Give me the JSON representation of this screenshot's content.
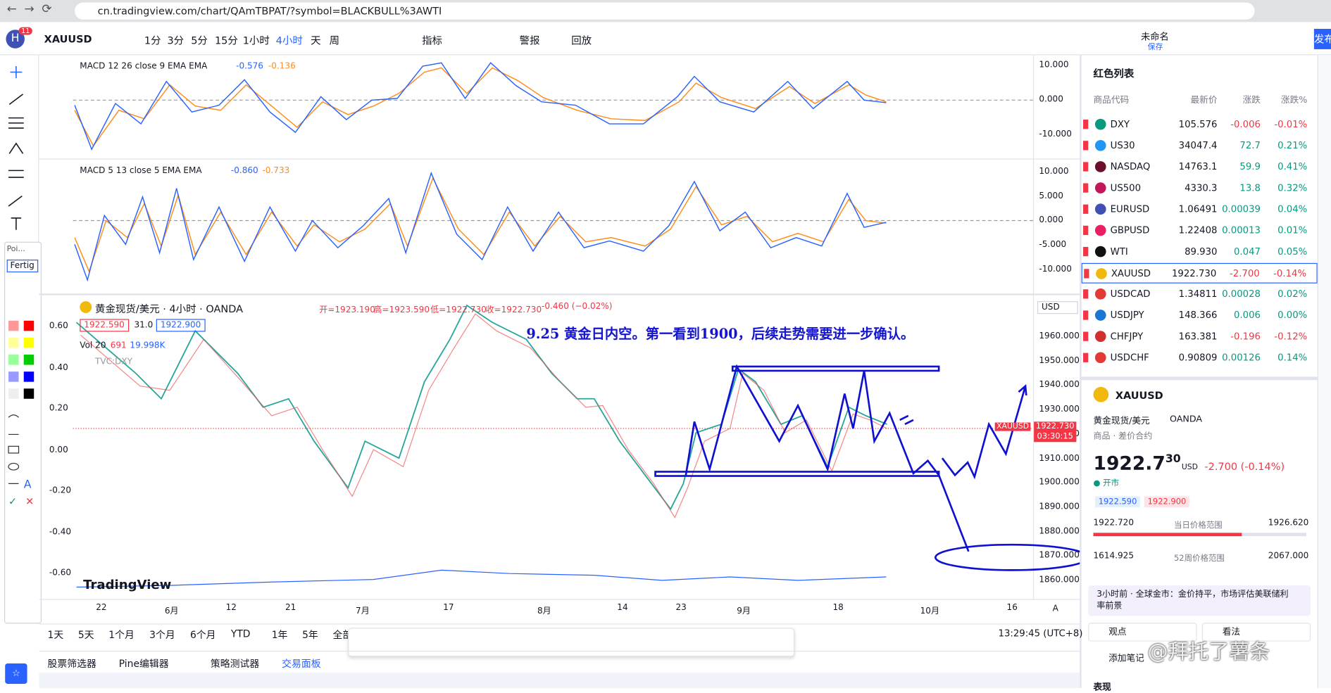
{
  "browser": {
    "url": "cn.tradingview.com/chart/QAmTBPAT/?symbol=BLACKBULL%3AWTI",
    "badge": "11"
  },
  "toolbar": {
    "symbol": "XAUUSD",
    "intervals": [
      "1分",
      "3分",
      "5分",
      "15分",
      "1小时",
      "4小时",
      "天",
      "周"
    ],
    "indicators": "指标",
    "alerts": "警报",
    "replay": "回放",
    "layout_name": "未命名",
    "save": "保存",
    "publish": "发布"
  },
  "tool_panel": {
    "title": "Poi...",
    "button": "Fertig"
  },
  "panes": [
    {
      "legend": "MACD 12 26 close 9 EMA EMA",
      "value_a": "-0.576",
      "value_b": "-0.136",
      "axis": [
        "10.000",
        "0.000",
        "-10.000"
      ]
    },
    {
      "legend": "MACD 5 13 close 5 EMA EMA",
      "value_a": "-0.860",
      "value_b": "-0.733",
      "axis": [
        "10.000",
        "5.000",
        "0.000",
        "-5.000",
        "-10.000"
      ]
    }
  ],
  "main": {
    "title": "黄金现货/美元 · 4小时 · OANDA",
    "open": "开=1923.190",
    "high": "高=1923.590",
    "low": "低=1922.730",
    "close": "收=1922.730",
    "change": "-0.460 (−0.02%)",
    "bid": "1922.590",
    "spread": "31.0",
    "ask": "1922.900",
    "volume_label": "Vol 20",
    "volume_a": "691",
    "volume_b": "19.998K",
    "overlay": "TVC:DXY",
    "currency": "USD",
    "annotation": "9.25 黄金日内空。第一看到1900，后续走势需要进一步确认。",
    "price_tag_symbol": "XAUUSD",
    "price_tag_price": "1922.730",
    "price_tag_timer": "03:30:15",
    "logo": "TradingView",
    "left_axis": [
      "0.60",
      "0.40",
      "0.20",
      "0.00",
      "-0.20",
      "-0.40",
      "-0.60"
    ],
    "right_axis": [
      "1960.000",
      "1950.000",
      "1940.000",
      "1930.000",
      "1920.000",
      "1910.000",
      "1900.000",
      "1890.000",
      "1880.000",
      "1870.000",
      "1860.000"
    ],
    "time_axis": [
      "22",
      "6月",
      "12",
      "21",
      "7月",
      "17",
      "8月",
      "14",
      "23",
      "9月",
      "18",
      "10月",
      "16"
    ],
    "scale_mode": "A"
  },
  "bottom": {
    "ranges": [
      "1天",
      "5天",
      "1个月",
      "3个月",
      "6个月",
      "YTD",
      "1年",
      "5年",
      "全部"
    ],
    "clock": "13:29:45 (UTC+8)",
    "tabs": [
      "股票筛选器",
      "Pine编辑器",
      "策略测试器",
      "交易面板"
    ]
  },
  "watchlist": {
    "title": "红色列表",
    "headers": [
      "商品代码",
      "最新价",
      "涨跌",
      "涨跌%"
    ],
    "rows": [
      [
        "DXY",
        "105.576",
        "-0.006",
        "-0.01%"
      ],
      [
        "US30",
        "34047.4",
        "72.7",
        "0.21%"
      ],
      [
        "NASDAQ",
        "14763.1",
        "59.9",
        "0.41%"
      ],
      [
        "US500",
        "4330.3",
        "13.8",
        "0.32%"
      ],
      [
        "EURUSD",
        "1.06491",
        "0.00039",
        "0.04%"
      ],
      [
        "GBPUSD",
        "1.22408",
        "0.00013",
        "0.01%"
      ],
      [
        "WTI",
        "89.930",
        "0.047",
        "0.05%"
      ],
      [
        "XAUUSD",
        "1922.730",
        "-2.700",
        "-0.14%"
      ],
      [
        "USDCAD",
        "1.34811",
        "0.00028",
        "0.02%"
      ],
      [
        "USDJPY",
        "148.366",
        "0.006",
        "0.00%"
      ],
      [
        "CHFJPY",
        "163.381",
        "-0.196",
        "-0.12%"
      ],
      [
        "USDCHF",
        "0.90809",
        "0.00126",
        "0.14%"
      ]
    ]
  },
  "details": {
    "symbol": "XAUUSD",
    "name": "黄金现货/美元",
    "exchange": "OANDA",
    "category": "商品 · 差价合约",
    "price": "1922.7",
    "price_tail": "30",
    "unit": "USD",
    "change": "-2.700 (-0.14%)",
    "status": "开市",
    "bid": "1922.590",
    "ask": "1922.900",
    "day_low": "1922.720",
    "day_label": "当日价格范围",
    "day_high": "1926.620",
    "year_low": "1614.925",
    "year_label": "52周价格范围",
    "year_high": "2067.000",
    "news": "3小时前 · 全球金市：金价持平，市场评估美联储利率前景",
    "ideas": "观点",
    "opinions": "看法",
    "note": "添加笔记",
    "performance": "表现"
  },
  "watermark": "@拜托了薯条"
}
